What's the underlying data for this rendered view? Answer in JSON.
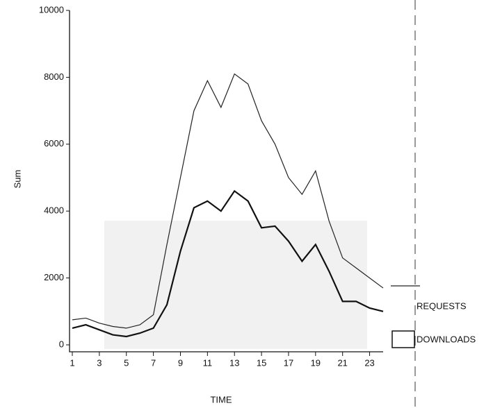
{
  "chart_data": {
    "type": "line",
    "x_label": "TIME",
    "y_label": "Sum",
    "x": [
      1,
      2,
      3,
      4,
      5,
      6,
      7,
      8,
      9,
      10,
      11,
      12,
      13,
      14,
      15,
      16,
      17,
      18,
      19,
      20,
      21,
      22,
      23,
      24
    ],
    "series": [
      {
        "name": "REQUESTS",
        "color": "#222222",
        "width": 1.2,
        "values": [
          750,
          800,
          650,
          550,
          500,
          600,
          900,
          3000,
          5000,
          7000,
          7900,
          7100,
          8100,
          7800,
          6700,
          6000,
          5000,
          4500,
          5200,
          3700,
          2600,
          2300,
          2000,
          1700
        ]
      },
      {
        "name": "DOWNLOADS",
        "color": "#111111",
        "width": 2.2,
        "values": [
          500,
          600,
          450,
          300,
          250,
          350,
          500,
          1200,
          2800,
          4100,
          4300,
          4000,
          4600,
          4300,
          3500,
          3550,
          3100,
          2500,
          3000,
          2200,
          1300,
          1300,
          1100,
          1000
        ]
      }
    ],
    "xlim": [
      1,
      24
    ],
    "xticks": [
      1,
      3,
      5,
      7,
      9,
      11,
      13,
      15,
      17,
      19,
      21,
      23
    ],
    "ylim": [
      0,
      10000
    ],
    "yticks": [
      0,
      2000,
      4000,
      6000,
      8000,
      10000
    ]
  }
}
